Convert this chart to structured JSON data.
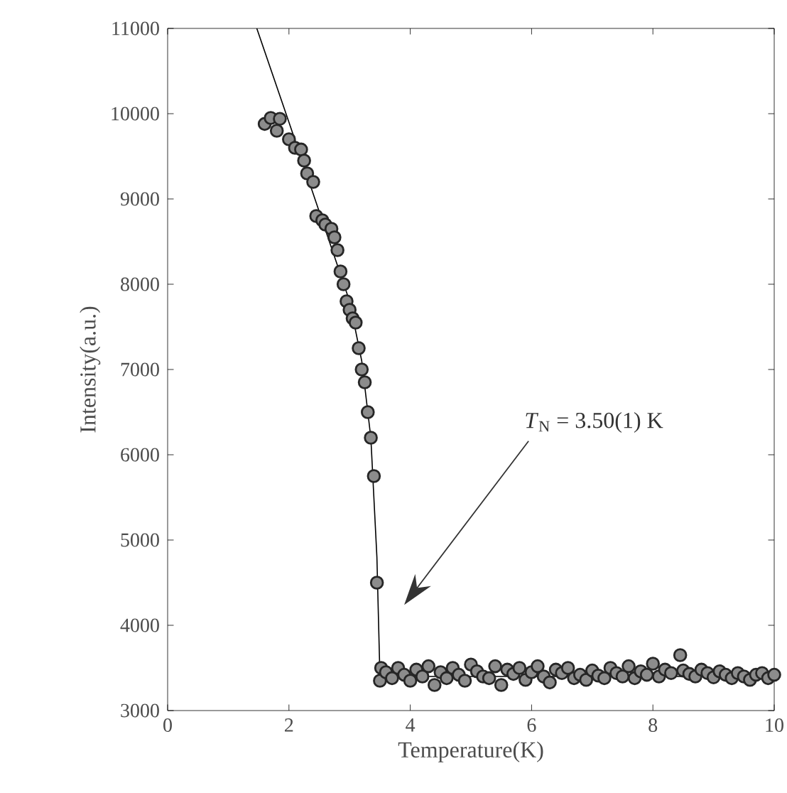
{
  "chart_data": {
    "type": "scatter",
    "xlabel": "Temperature(K)",
    "ylabel": "Intensity(a.u.)",
    "xlim": [
      0,
      10
    ],
    "ylim": [
      3000,
      11000
    ],
    "xticks": [
      0,
      2,
      4,
      6,
      8,
      10
    ],
    "yticks": [
      3000,
      4000,
      5000,
      6000,
      7000,
      8000,
      9000,
      10000,
      11000
    ],
    "grid": false,
    "marker": "circle",
    "annotations": [
      "*T*$_{N}$ = 3.50(1) K"
    ],
    "series": [
      {
        "color": "#8c8c8c",
        "x": [
          1.6,
          1.7,
          1.8,
          1.85,
          2.0,
          2.1,
          2.2,
          2.25,
          2.3,
          2.4,
          2.45,
          2.55,
          2.6,
          2.7,
          2.75,
          2.8,
          2.85,
          2.9,
          2.95,
          3.0,
          3.05,
          3.1,
          3.15,
          3.2,
          3.25,
          3.3,
          3.35,
          3.4,
          3.45,
          3.5,
          3.52,
          3.6,
          3.7,
          3.8,
          3.9,
          4.0,
          4.1,
          4.2,
          4.3,
          4.4,
          4.5,
          4.6,
          4.7,
          4.8,
          4.9,
          5.0,
          5.1,
          5.2,
          5.3,
          5.4,
          5.5,
          5.6,
          5.7,
          5.8,
          5.9,
          6.0,
          6.1,
          6.2,
          6.3,
          6.4,
          6.5,
          6.6,
          6.7,
          6.8,
          6.9,
          7.0,
          7.1,
          7.2,
          7.3,
          7.4,
          7.5,
          7.6,
          7.7,
          7.8,
          7.9,
          8.0,
          8.1,
          8.2,
          8.3,
          8.45,
          8.5,
          8.6,
          8.7,
          8.8,
          8.9,
          9.0,
          9.1,
          9.2,
          9.3,
          9.4,
          9.5,
          9.6,
          9.7,
          9.8,
          9.9,
          10.0
        ],
        "values": [
          9880,
          9950,
          9800,
          9940,
          9700,
          9600,
          9580,
          9450,
          9300,
          9200,
          8800,
          8750,
          8700,
          8650,
          8550,
          8400,
          8150,
          8000,
          7800,
          7700,
          7600,
          7550,
          7250,
          7000,
          6850,
          6500,
          6200,
          5750,
          4500,
          3350,
          3500,
          3450,
          3380,
          3500,
          3420,
          3350,
          3480,
          3400,
          3520,
          3300,
          3450,
          3380,
          3500,
          3420,
          3350,
          3540,
          3460,
          3400,
          3380,
          3520,
          3300,
          3480,
          3430,
          3500,
          3360,
          3450,
          3520,
          3400,
          3330,
          3480,
          3440,
          3500,
          3380,
          3420,
          3360,
          3470,
          3410,
          3380,
          3500,
          3440,
          3400,
          3520,
          3380,
          3460,
          3420,
          3550,
          3400,
          3480,
          3440,
          3650,
          3470,
          3430,
          3400,
          3480,
          3440,
          3390,
          3460,
          3420,
          3380,
          3440,
          3400,
          3360,
          3420,
          3440,
          3380,
          3420
        ]
      },
      {
        "type": "line",
        "color": "#000000",
        "marker": "none",
        "x": [
          1.47,
          2.0,
          2.5,
          3.0,
          3.2,
          3.35,
          3.45,
          3.5,
          10.0
        ],
        "values": [
          11000,
          9900,
          8850,
          7800,
          7100,
          6200,
          4800,
          3400,
          3400
        ]
      }
    ]
  }
}
